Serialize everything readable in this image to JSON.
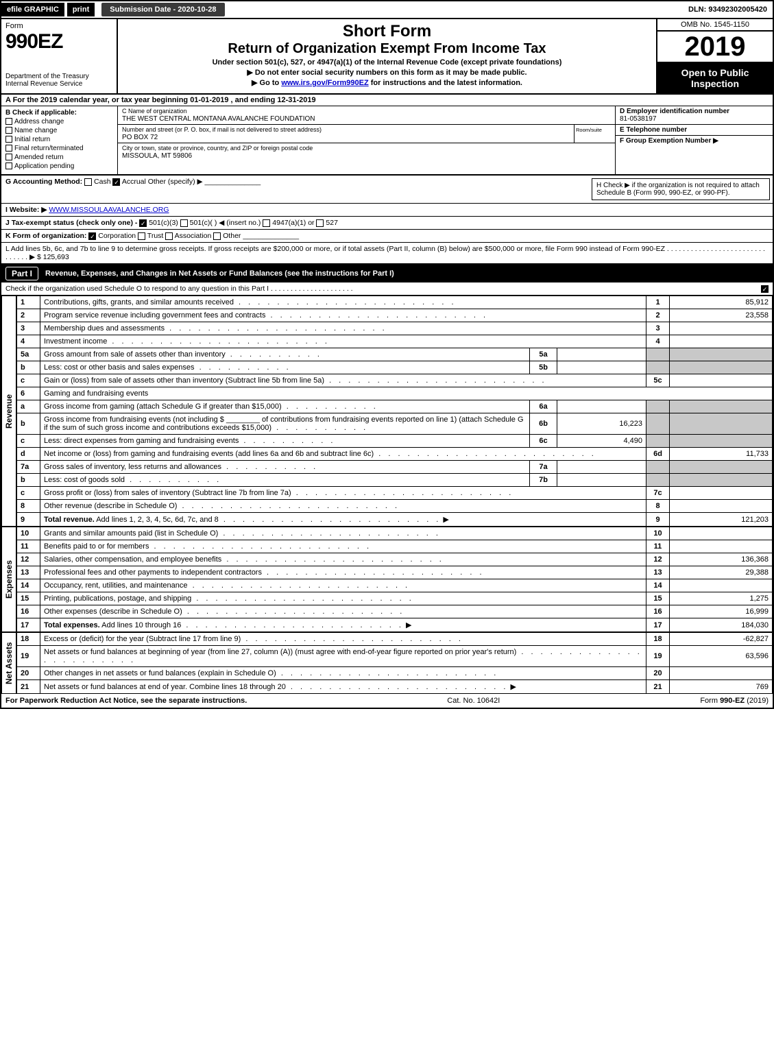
{
  "colors": {
    "black": "#000000",
    "white": "#ffffff",
    "gray_cell": "#c8c8c8",
    "link": "#0000cc",
    "darkbtn": "#3a3a3a"
  },
  "topbar": {
    "efile": "efile GRAPHIC",
    "print": "print",
    "submission": "Submission Date - 2020-10-28",
    "dln": "DLN: 93492302005420"
  },
  "header": {
    "form_word": "Form",
    "form_number": "990EZ",
    "dept": "Department of the Treasury Internal Revenue Service",
    "title_short": "Short Form",
    "title_main": "Return of Organization Exempt From Income Tax",
    "title_sub1": "Under section 501(c), 527, or 4947(a)(1) of the Internal Revenue Code (except private foundations)",
    "title_sub2": "▶ Do not enter social security numbers on this form as it may be made public.",
    "title_sub3_pre": "▶ Go to ",
    "title_sub3_link": "www.irs.gov/Form990EZ",
    "title_sub3_post": " for instructions and the latest information.",
    "omb": "OMB No. 1545-1150",
    "year": "2019",
    "open_public": "Open to Public Inspection"
  },
  "row_a": "A  For the 2019 calendar year, or tax year beginning 01-01-2019 , and ending 12-31-2019",
  "col_b": {
    "title": "B  Check if applicable:",
    "items": [
      "Address change",
      "Name change",
      "Initial return",
      "Final return/terminated",
      "Amended return",
      "Application pending"
    ]
  },
  "col_c": {
    "name_label": "C Name of organization",
    "name": "THE WEST CENTRAL MONTANA AVALANCHE FOUNDATION",
    "street_label": "Number and street (or P. O. box, if mail is not delivered to street address)",
    "street": "PO BOX 72",
    "room_label": "Room/suite",
    "city_label": "City or town, state or province, country, and ZIP or foreign postal code",
    "city": "MISSOULA, MT  59806"
  },
  "col_d": {
    "ein_label": "D Employer identification number",
    "ein": "81-0538197",
    "phone_label": "E Telephone number",
    "phone": "",
    "group_label": "F Group Exemption Number  ▶",
    "group": ""
  },
  "meta": {
    "g_label": "G Accounting Method:",
    "g_cash": "Cash",
    "g_accrual": "Accrual",
    "g_other": "Other (specify) ▶",
    "h_text": "H  Check ▶     if the organization is not required to attach Schedule B (Form 990, 990-EZ, or 990-PF).",
    "i_label": "I Website: ▶",
    "i_value": "WWW.MISSOULAAVALANCHE.ORG",
    "j_label": "J Tax-exempt status (check only one) -",
    "j_501c3": "501(c)(3)",
    "j_501c": "501(c)(  ) ◀ (insert no.)",
    "j_4947": "4947(a)(1) or",
    "j_527": "527",
    "k_label": "K Form of organization:",
    "k_corp": "Corporation",
    "k_trust": "Trust",
    "k_assoc": "Association",
    "k_other": "Other",
    "l_text": "L Add lines 5b, 6c, and 7b to line 9 to determine gross receipts. If gross receipts are $200,000 or more, or if total assets (Part II, column (B) below) are $500,000 or more, file Form 990 instead of Form 990-EZ  . . . . . . . . . . . . . . . . . . . . . . . . . . . . . . . ▶ $ 125,693"
  },
  "part1": {
    "label": "Part I",
    "title": "Revenue, Expenses, and Changes in Net Assets or Fund Balances (see the instructions for Part I)",
    "check_note": "Check if the organization used Schedule O to respond to any question in this Part I . . . . . . . . . . . . . . . . . . . . .",
    "sections": {
      "revenue": "Revenue",
      "expenses": "Expenses",
      "netassets": "Net Assets"
    },
    "lines": [
      {
        "n": "1",
        "d": "Contributions, gifts, grants, and similar amounts received",
        "box": "1",
        "v": "85,912"
      },
      {
        "n": "2",
        "d": "Program service revenue including government fees and contracts",
        "box": "2",
        "v": "23,558"
      },
      {
        "n": "3",
        "d": "Membership dues and assessments",
        "box": "3",
        "v": ""
      },
      {
        "n": "4",
        "d": "Investment income",
        "box": "4",
        "v": ""
      },
      {
        "n": "5a",
        "d": "Gross amount from sale of assets other than inventory",
        "sub": "5a",
        "sv": ""
      },
      {
        "n": "b",
        "d": "Less: cost or other basis and sales expenses",
        "sub": "5b",
        "sv": ""
      },
      {
        "n": "c",
        "d": "Gain or (loss) from sale of assets other than inventory (Subtract line 5b from line 5a)",
        "box": "5c",
        "v": ""
      },
      {
        "n": "6",
        "d": "Gaming and fundraising events",
        "plain": true
      },
      {
        "n": "a",
        "d": "Gross income from gaming (attach Schedule G if greater than $15,000)",
        "sub": "6a",
        "sv": ""
      },
      {
        "n": "b",
        "d": "Gross income from fundraising events (not including $ ________ of contributions from fundraising events reported on line 1) (attach Schedule G if the sum of such gross income and contributions exceeds $15,000)",
        "sub": "6b",
        "sv": "16,223"
      },
      {
        "n": "c",
        "d": "Less: direct expenses from gaming and fundraising events",
        "sub": "6c",
        "sv": "4,490"
      },
      {
        "n": "d",
        "d": "Net income or (loss) from gaming and fundraising events (add lines 6a and 6b and subtract line 6c)",
        "box": "6d",
        "v": "11,733"
      },
      {
        "n": "7a",
        "d": "Gross sales of inventory, less returns and allowances",
        "sub": "7a",
        "sv": ""
      },
      {
        "n": "b",
        "d": "Less: cost of goods sold",
        "sub": "7b",
        "sv": ""
      },
      {
        "n": "c",
        "d": "Gross profit or (loss) from sales of inventory (Subtract line 7b from line 7a)",
        "box": "7c",
        "v": ""
      },
      {
        "n": "8",
        "d": "Other revenue (describe in Schedule O)",
        "box": "8",
        "v": ""
      },
      {
        "n": "9",
        "d": "Total revenue. Add lines 1, 2, 3, 4, 5c, 6d, 7c, and 8",
        "box": "9",
        "v": "121,203",
        "bold": true,
        "arrow": true
      }
    ],
    "exp_lines": [
      {
        "n": "10",
        "d": "Grants and similar amounts paid (list in Schedule O)",
        "box": "10",
        "v": ""
      },
      {
        "n": "11",
        "d": "Benefits paid to or for members",
        "box": "11",
        "v": ""
      },
      {
        "n": "12",
        "d": "Salaries, other compensation, and employee benefits",
        "box": "12",
        "v": "136,368"
      },
      {
        "n": "13",
        "d": "Professional fees and other payments to independent contractors",
        "box": "13",
        "v": "29,388"
      },
      {
        "n": "14",
        "d": "Occupancy, rent, utilities, and maintenance",
        "box": "14",
        "v": ""
      },
      {
        "n": "15",
        "d": "Printing, publications, postage, and shipping",
        "box": "15",
        "v": "1,275"
      },
      {
        "n": "16",
        "d": "Other expenses (describe in Schedule O)",
        "box": "16",
        "v": "16,999"
      },
      {
        "n": "17",
        "d": "Total expenses. Add lines 10 through 16",
        "box": "17",
        "v": "184,030",
        "bold": true,
        "arrow": true
      }
    ],
    "net_lines": [
      {
        "n": "18",
        "d": "Excess or (deficit) for the year (Subtract line 17 from line 9)",
        "box": "18",
        "v": "-62,827"
      },
      {
        "n": "19",
        "d": "Net assets or fund balances at beginning of year (from line 27, column (A)) (must agree with end-of-year figure reported on prior year's return)",
        "box": "19",
        "v": "63,596"
      },
      {
        "n": "20",
        "d": "Other changes in net assets or fund balances (explain in Schedule O)",
        "box": "20",
        "v": ""
      },
      {
        "n": "21",
        "d": "Net assets or fund balances at end of year. Combine lines 18 through 20",
        "box": "21",
        "v": "769",
        "arrow": true
      }
    ]
  },
  "footer": {
    "left": "For Paperwork Reduction Act Notice, see the separate instructions.",
    "center": "Cat. No. 10642I",
    "right": "Form 990-EZ (2019)"
  }
}
